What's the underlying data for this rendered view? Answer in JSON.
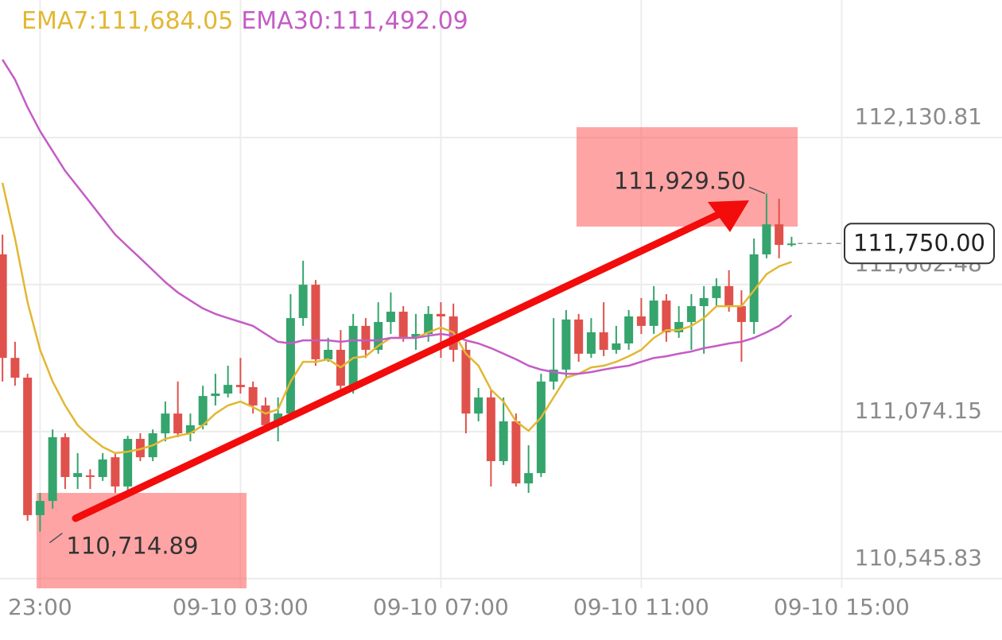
{
  "chart_data": {
    "type": "candlestick",
    "x": [
      0,
      1,
      2,
      3,
      4,
      5,
      6,
      7,
      8,
      9,
      10,
      11,
      12,
      13,
      14,
      15,
      16,
      17,
      18,
      19,
      20,
      21,
      22,
      23,
      24,
      25,
      26,
      27,
      28,
      29,
      30,
      31,
      32,
      33,
      34,
      35,
      36,
      37,
      38,
      39,
      40,
      41,
      42,
      43,
      44,
      45,
      46,
      47,
      48,
      49,
      50,
      51,
      52,
      53,
      54,
      55,
      56,
      57,
      58,
      59,
      60,
      61,
      62,
      63
    ],
    "open": [
      111711,
      111339,
      111268,
      110774,
      110825,
      111054,
      110911,
      110917,
      110911,
      110982,
      110877,
      111048,
      110982,
      111068,
      111139,
      111068,
      111097,
      111202,
      111211,
      111242,
      111234,
      111168,
      111097,
      111139,
      111482,
      111602,
      111334,
      111368,
      111239,
      111454,
      111368,
      111468,
      111505,
      111411,
      111425,
      111497,
      111488,
      111368,
      111139,
      111197,
      110968,
      111111,
      110888,
      110925,
      111254,
      111297,
      111477,
      111354,
      111431,
      111368,
      111391,
      111488,
      111454,
      111545,
      111431,
      111468,
      111525,
      111554,
      111597,
      111525,
      111468,
      111711,
      111819,
      111745
    ],
    "high": [
      111782,
      111397,
      111282,
      110854,
      111082,
      111068,
      110997,
      110939,
      110997,
      110997,
      111059,
      111068,
      111082,
      111182,
      111254,
      111139,
      111239,
      111282,
      111311,
      111339,
      111254,
      111197,
      111197,
      111568,
      111688,
      111619,
      111411,
      111439,
      111497,
      111482,
      111539,
      111574,
      111525,
      111497,
      111525,
      111539,
      111534,
      111397,
      111231,
      111225,
      111197,
      111139,
      111025,
      111282,
      111482,
      111511,
      111497,
      111482,
      111539,
      111454,
      111511,
      111554,
      111597,
      111568,
      111525,
      111568,
      111597,
      111625,
      111654,
      111582,
      111768,
      111929.5,
      111911,
      111774
    ],
    "low": [
      111254,
      111239,
      110754,
      110714.89,
      110797,
      110868,
      110868,
      110868,
      110897,
      110854,
      110859,
      110968,
      110968,
      111039,
      111054,
      111039,
      111082,
      111168,
      111197,
      111211,
      111139,
      111082,
      111039,
      111125,
      111454,
      111311,
      111325,
      111211,
      111211,
      111339,
      111354,
      111425,
      111397,
      111368,
      111397,
      111339,
      111325,
      111068,
      111111,
      110877,
      110954,
      110877,
      110854,
      110911,
      111225,
      111268,
      111325,
      111339,
      111345,
      111354,
      111368,
      111425,
      111425,
      111397,
      111411,
      111368,
      111354,
      111525,
      111505,
      111325,
      111425,
      111697,
      111697,
      111739
    ],
    "close": [
      111339,
      111268,
      110774,
      110825,
      111054,
      110911,
      110925,
      110911,
      110974,
      110877,
      111048,
      110982,
      111068,
      111139,
      111068,
      111097,
      111202,
      111211,
      111242,
      111234,
      111168,
      111097,
      111139,
      111482,
      111602,
      111334,
      111368,
      111239,
      111454,
      111368,
      111468,
      111505,
      111411,
      111425,
      111497,
      111488,
      111368,
      111139,
      111197,
      110968,
      111111,
      110888,
      110925,
      111254,
      111297,
      111477,
      111354,
      111431,
      111368,
      111391,
      111488,
      111454,
      111545,
      111431,
      111468,
      111525,
      111554,
      111597,
      111525,
      111468,
      111711,
      111819,
      111745,
      111750
    ],
    "up_color": "#35a46d",
    "down_color": "#e0514c",
    "series": [
      {
        "name": "EMA7:111,684.05",
        "color": "#e2b733",
        "values": [
          111968,
          111768,
          111539,
          111368,
          111254,
          111168,
          111097,
          111054,
          111019,
          110997,
          111002,
          111011,
          111025,
          111048,
          111059,
          111068,
          111097,
          111139,
          111168,
          111182,
          111162,
          111139,
          111154,
          111254,
          111325,
          111325,
          111334,
          111305,
          111339,
          111345,
          111382,
          111411,
          111411,
          111411,
          111431,
          111448,
          111431,
          111354,
          111311,
          111225,
          111182,
          111111,
          111077,
          111125,
          111197,
          111268,
          111282,
          111305,
          111311,
          111325,
          111345,
          111368,
          111411,
          111439,
          111439,
          111454,
          111482,
          111525,
          111525,
          111525,
          111582,
          111640,
          111668,
          111684.05
        ]
      },
      {
        "name": "EMA30:111,492.09",
        "color": "#c45cc6",
        "values": [
          112411,
          112339,
          112239,
          112154,
          112082,
          112011,
          111954,
          111897,
          111839,
          111782,
          111739,
          111697,
          111654,
          111611,
          111574,
          111545,
          111517,
          111497,
          111482,
          111468,
          111454,
          111425,
          111397,
          111391,
          111402,
          111402,
          111402,
          111397,
          111402,
          111402,
          111402,
          111411,
          111411,
          111411,
          111419,
          111425,
          111419,
          111402,
          111391,
          111374,
          111354,
          111334,
          111311,
          111297,
          111288,
          111282,
          111282,
          111288,
          111297,
          111305,
          111311,
          111325,
          111339,
          111345,
          111354,
          111362,
          111374,
          111382,
          111391,
          111397,
          111411,
          111431,
          111454,
          111492.09
        ]
      }
    ],
    "xlim": [
      -0.2,
      79.8
    ],
    "xticks": [
      {
        "value": 3,
        "label": "23:00"
      },
      {
        "value": 19,
        "label": "09-10 03:00"
      },
      {
        "value": 35,
        "label": "09-10 07:00"
      },
      {
        "value": 51,
        "label": "09-10 11:00"
      },
      {
        "value": 67,
        "label": "09-10 15:00"
      }
    ],
    "ylim": [
      110511,
      112625
    ],
    "yticks": [
      {
        "value": 110545.83,
        "label": "110,545.83"
      },
      {
        "value": 111074.15,
        "label": "111,074.15"
      },
      {
        "value": 111602.48,
        "label": "111,602.48"
      },
      {
        "value": 112130.81,
        "label": "112,130.81"
      }
    ],
    "grid": true,
    "annotations": [
      {
        "x": 61,
        "value": 111929.5,
        "text": "111,929.50",
        "side": "left"
      },
      {
        "x": 3,
        "value": 110714.89,
        "text": "110,714.89",
        "side": "right"
      }
    ],
    "last_price": {
      "x": 63,
      "value": 111750,
      "label": "111,750.00"
    }
  }
}
